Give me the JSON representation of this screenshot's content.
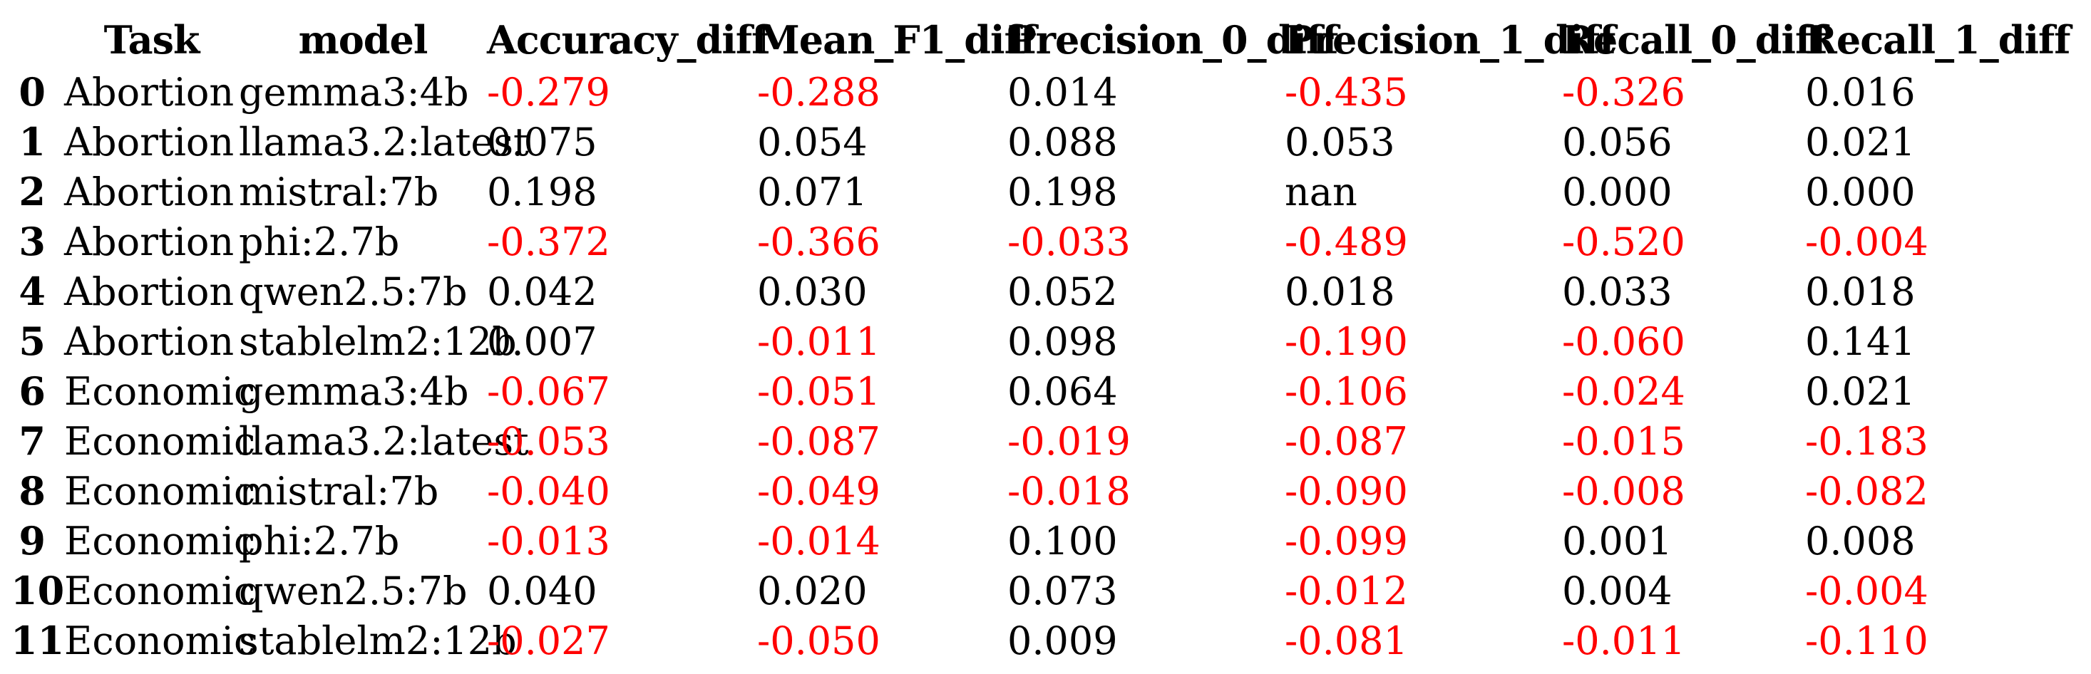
{
  "chart_data": {
    "type": "table",
    "columns": [
      "Task",
      "model",
      "Accuracy_diff",
      "Mean_F1_diff",
      "Precision_0_diff",
      "Precision_1_diff",
      "Recall_0_diff",
      "Recall_1_diff"
    ],
    "index": [
      "0",
      "1",
      "2",
      "3",
      "4",
      "5",
      "6",
      "7",
      "8",
      "9",
      "10",
      "11"
    ],
    "rows": [
      [
        "Abortion",
        "gemma3:4b",
        "-0.279",
        "-0.288",
        "0.014",
        "-0.435",
        "-0.326",
        "0.016"
      ],
      [
        "Abortion",
        "llama3.2:latest",
        "0.075",
        "0.054",
        "0.088",
        "0.053",
        "0.056",
        "0.021"
      ],
      [
        "Abortion",
        "mistral:7b",
        "0.198",
        "0.071",
        "0.198",
        "nan",
        "0.000",
        "0.000"
      ],
      [
        "Abortion",
        "phi:2.7b",
        "-0.372",
        "-0.366",
        "-0.033",
        "-0.489",
        "-0.520",
        "-0.004"
      ],
      [
        "Abortion",
        "qwen2.5:7b",
        "0.042",
        "0.030",
        "0.052",
        "0.018",
        "0.033",
        "0.018"
      ],
      [
        "Abortion",
        "stablelm2:12b",
        "0.007",
        "-0.011",
        "0.098",
        "-0.190",
        "-0.060",
        "0.141"
      ],
      [
        "Economic",
        "gemma3:4b",
        "-0.067",
        "-0.051",
        "0.064",
        "-0.106",
        "-0.024",
        "0.021"
      ],
      [
        "Economic",
        "llama3.2:latest",
        "-0.053",
        "-0.087",
        "-0.019",
        "-0.087",
        "-0.015",
        "-0.183"
      ],
      [
        "Economic",
        "mistral:7b",
        "-0.040",
        "-0.049",
        "-0.018",
        "-0.090",
        "-0.008",
        "-0.082"
      ],
      [
        "Economic",
        "phi:2.7b",
        "-0.013",
        "-0.014",
        "0.100",
        "-0.099",
        "0.001",
        "0.008"
      ],
      [
        "Economic",
        "qwen2.5:7b",
        "0.040",
        "0.020",
        "0.073",
        "-0.012",
        "0.004",
        "-0.004"
      ],
      [
        "Economic",
        "stablelm2:12b",
        "-0.027",
        "-0.050",
        "0.009",
        "-0.081",
        "-0.011",
        "-0.110"
      ]
    ],
    "index_header": "",
    "legend_position": "none",
    "grid": false,
    "styling": {
      "negative_value_color": "#ff0000",
      "default_text_color": "#000000",
      "background_color": "#ffffff"
    }
  }
}
